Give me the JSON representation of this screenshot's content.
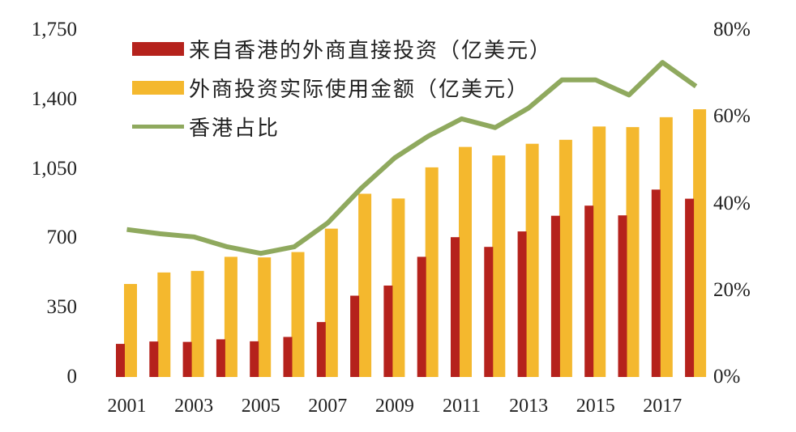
{
  "chart_data": {
    "type": "bar",
    "title": "",
    "xlabel": "",
    "ylabel": "",
    "y2label": "",
    "categories": [
      "2001",
      "2002",
      "2003",
      "2004",
      "2005",
      "2006",
      "2007",
      "2008",
      "2009",
      "2010",
      "2011",
      "2012",
      "2013",
      "2014",
      "2015",
      "2016",
      "2017",
      "2018"
    ],
    "x_tick_labels": [
      "2001",
      "2003",
      "2005",
      "2007",
      "2009",
      "2011",
      "2013",
      "2015",
      "2017"
    ],
    "y_ticks_left": [
      "0",
      "350",
      "700",
      "1,050",
      "1,400",
      "1,750"
    ],
    "y_ticks_right": [
      "0%",
      "20%",
      "40%",
      "60%",
      "80%"
    ],
    "ylim": [
      0,
      1750
    ],
    "y2lim": [
      0,
      80
    ],
    "grid": false,
    "legend_position": "top-left",
    "series": [
      {
        "name": "来自香港的外商直接投资（亿美元）",
        "type": "bar",
        "axis": "left",
        "color": "#B5221C",
        "values": [
          167,
          179,
          177,
          190,
          180,
          202,
          277,
          410,
          461,
          606,
          705,
          656,
          734,
          813,
          864,
          815,
          945,
          899
        ]
      },
      {
        "name": "外商投资实际使用金额（亿美元）",
        "type": "bar",
        "axis": "left",
        "color": "#F4B82E",
        "values": [
          469,
          527,
          535,
          606,
          603,
          630,
          748,
          924,
          900,
          1057,
          1160,
          1117,
          1176,
          1196,
          1263,
          1260,
          1310,
          1350
        ]
      },
      {
        "name": "香港占比",
        "type": "line",
        "axis": "right",
        "color": "#8FA95E",
        "values": [
          34.0,
          33.0,
          32.3,
          30.0,
          28.5,
          30.0,
          35.5,
          43.5,
          50.5,
          55.5,
          59.5,
          57.5,
          62.0,
          68.5,
          68.5,
          65.0,
          72.5,
          67.0
        ]
      }
    ]
  },
  "legend": {
    "items": [
      {
        "label": "来自香港的外商直接投资（亿美元）",
        "color": "#B5221C",
        "kind": "bar"
      },
      {
        "label": "外商投资实际使用金额（亿美元）",
        "color": "#F4B82E",
        "kind": "bar"
      },
      {
        "label": "香港占比",
        "color": "#8FA95E",
        "kind": "line"
      }
    ]
  }
}
